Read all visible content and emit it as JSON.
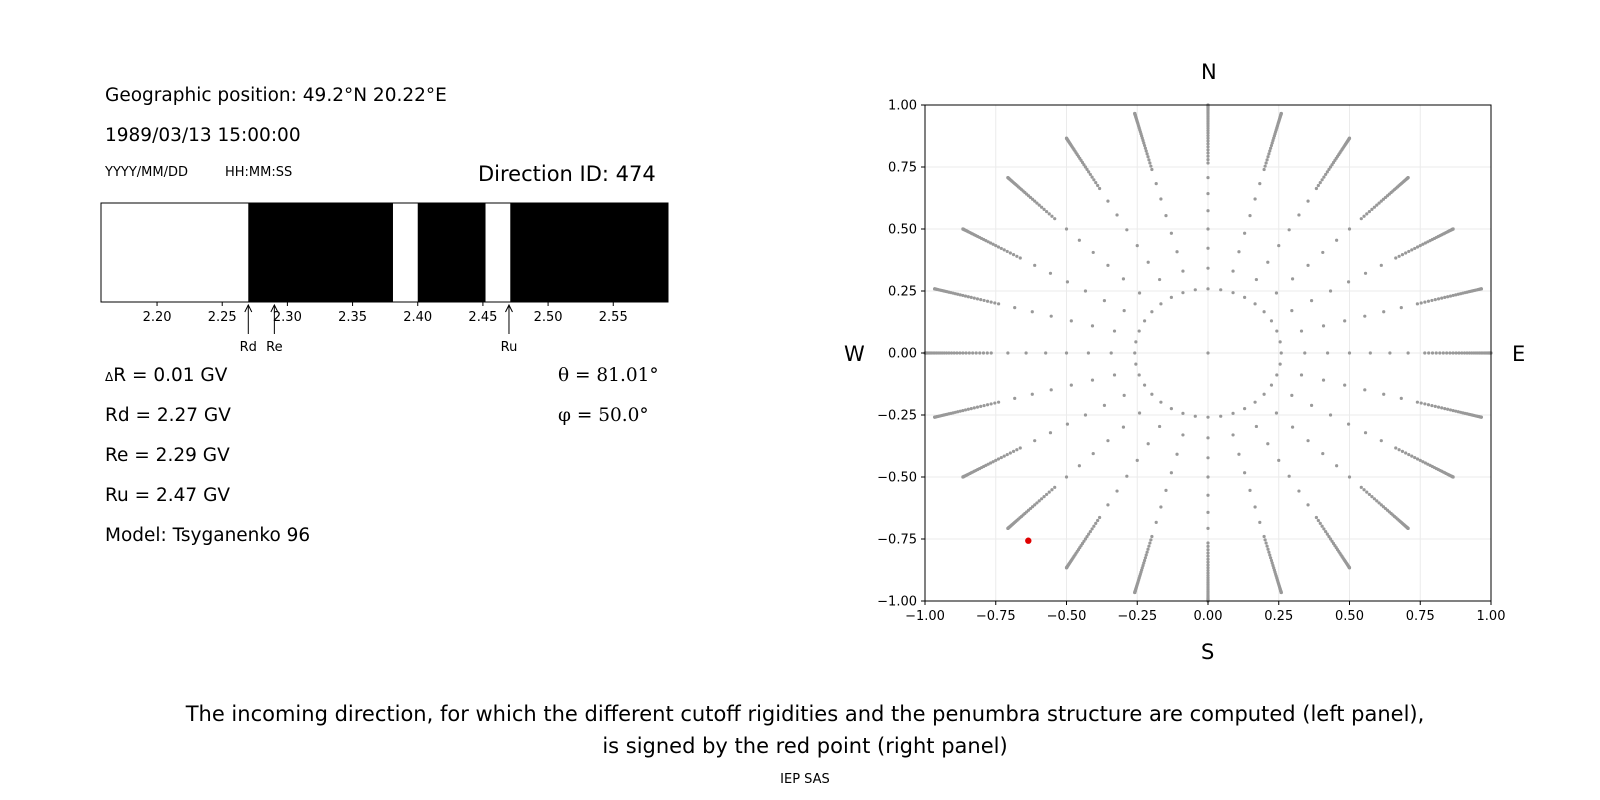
{
  "left_panel": {
    "geo_position": "Geographic position: 49.2°N 20.22°E",
    "datetime": "1989/03/13 15:00:00",
    "date_format": "YYYY/MM/DD",
    "time_format": "HH:MM:SS",
    "direction_id": "Direction ID: 474",
    "delta_r": "R = 0.01 GV",
    "delta_symbol": "Δ",
    "rd_text": "Rd = 2.27 GV",
    "re_text": "Re = 2.29 GV",
    "ru_text": "Ru = 2.47 GV",
    "model": "Model: Tsyganenko 96",
    "theta": "θ = 81.01°",
    "phi": "φ = 50.0°"
  },
  "right_panel": {
    "north": "N",
    "south": "S",
    "west": "W",
    "east": "E"
  },
  "caption": {
    "line1": "The incoming direction, for which the different cutoff rigidities and the penumbra structure are computed (left panel),",
    "line2": "is signed by the red point (right panel)"
  },
  "footer": "IEP SAS",
  "chart_data": [
    {
      "type": "bar",
      "name": "penumbra",
      "xlim": [
        2.157,
        2.592
      ],
      "xticks": [
        2.2,
        2.25,
        2.3,
        2.35,
        2.4,
        2.45,
        2.5,
        2.55
      ],
      "tick_labels": [
        "2.20",
        "2.25",
        "2.30",
        "2.35",
        "2.40",
        "2.45",
        "2.50",
        "2.55"
      ],
      "allowed_color": "#ffffff",
      "forbidden_color": "#000000",
      "forbidden_intervals": [
        [
          2.27,
          2.381
        ],
        [
          2.4,
          2.452
        ],
        [
          2.471,
          2.592
        ]
      ],
      "markers": [
        {
          "label": "Rd",
          "value": 2.27
        },
        {
          "label": "Re",
          "value": 2.29
        },
        {
          "label": "Ru",
          "value": 2.47
        }
      ]
    },
    {
      "type": "scatter",
      "name": "directions",
      "xlim": [
        -1.0,
        1.0
      ],
      "ylim": [
        -1.0,
        1.0
      ],
      "xticks": [
        -1.0,
        -0.75,
        -0.5,
        -0.25,
        0.0,
        0.25,
        0.5,
        0.75,
        1.0
      ],
      "yticks": [
        -1.0,
        -0.75,
        -0.5,
        -0.25,
        0.0,
        0.25,
        0.5,
        0.75,
        1.0
      ],
      "xtick_labels": [
        "−1.00",
        "−0.75",
        "−0.50",
        "−0.25",
        "0.00",
        "0.25",
        "0.50",
        "0.75",
        "1.00"
      ],
      "ytick_labels": [
        "−1.00",
        "−0.75",
        "−0.50",
        "−0.25",
        "0.00",
        "0.25",
        "0.50",
        "0.75",
        "1.00"
      ],
      "grid": true,
      "point_color": "#999999",
      "highlight_color": "#e00000",
      "zenith_step_deg": 5,
      "zenith_max_deg": 90,
      "inner_circle_zenith_deg": 15,
      "inner_circle_points": 36,
      "azimuth_step_deg": 15,
      "highlight": {
        "x": -0.635,
        "y": -0.757
      }
    }
  ]
}
